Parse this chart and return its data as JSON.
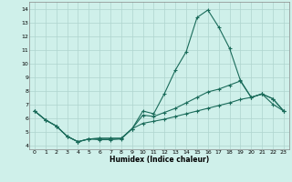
{
  "xlabel": "Humidex (Indice chaleur)",
  "ylabel": "",
  "xlim": [
    -0.5,
    23.5
  ],
  "ylim": [
    3.7,
    14.5
  ],
  "xticks": [
    0,
    1,
    2,
    3,
    4,
    5,
    6,
    7,
    8,
    9,
    10,
    11,
    12,
    13,
    14,
    15,
    16,
    17,
    18,
    19,
    20,
    21,
    22,
    23
  ],
  "yticks": [
    4,
    5,
    6,
    7,
    8,
    9,
    10,
    11,
    12,
    13,
    14
  ],
  "background_color": "#cff0ea",
  "grid_color": "#aed4ce",
  "line_color": "#1a6b5a",
  "line1_x": [
    0,
    1,
    2,
    3,
    4,
    5,
    6,
    7,
    8,
    9,
    10,
    11,
    12,
    13,
    14,
    15,
    16,
    17,
    18,
    19,
    20,
    21,
    22,
    23
  ],
  "line1_y": [
    6.5,
    5.85,
    5.4,
    4.65,
    4.25,
    4.45,
    4.4,
    4.4,
    4.45,
    5.2,
    6.5,
    6.3,
    7.8,
    9.5,
    10.85,
    13.35,
    13.9,
    12.65,
    11.1,
    8.75,
    7.5,
    7.75,
    7.4,
    6.5
  ],
  "line2_x": [
    0,
    1,
    2,
    3,
    4,
    5,
    6,
    7,
    8,
    9,
    10,
    11,
    12,
    13,
    14,
    15,
    16,
    17,
    18,
    19,
    20,
    21,
    22,
    23
  ],
  "line2_y": [
    6.5,
    5.85,
    5.4,
    4.65,
    4.25,
    4.45,
    4.5,
    4.5,
    4.5,
    5.2,
    6.2,
    6.1,
    6.4,
    6.7,
    7.1,
    7.5,
    7.9,
    8.1,
    8.4,
    8.7,
    7.5,
    7.75,
    7.4,
    6.5
  ],
  "line3_x": [
    0,
    1,
    2,
    3,
    4,
    5,
    6,
    7,
    8,
    9,
    10,
    11,
    12,
    13,
    14,
    15,
    16,
    17,
    18,
    19,
    20,
    21,
    22,
    23
  ],
  "line3_y": [
    6.5,
    5.85,
    5.4,
    4.65,
    4.25,
    4.45,
    4.5,
    4.5,
    4.5,
    5.2,
    5.6,
    5.75,
    5.9,
    6.1,
    6.3,
    6.5,
    6.7,
    6.9,
    7.1,
    7.35,
    7.5,
    7.75,
    7.0,
    6.5
  ]
}
